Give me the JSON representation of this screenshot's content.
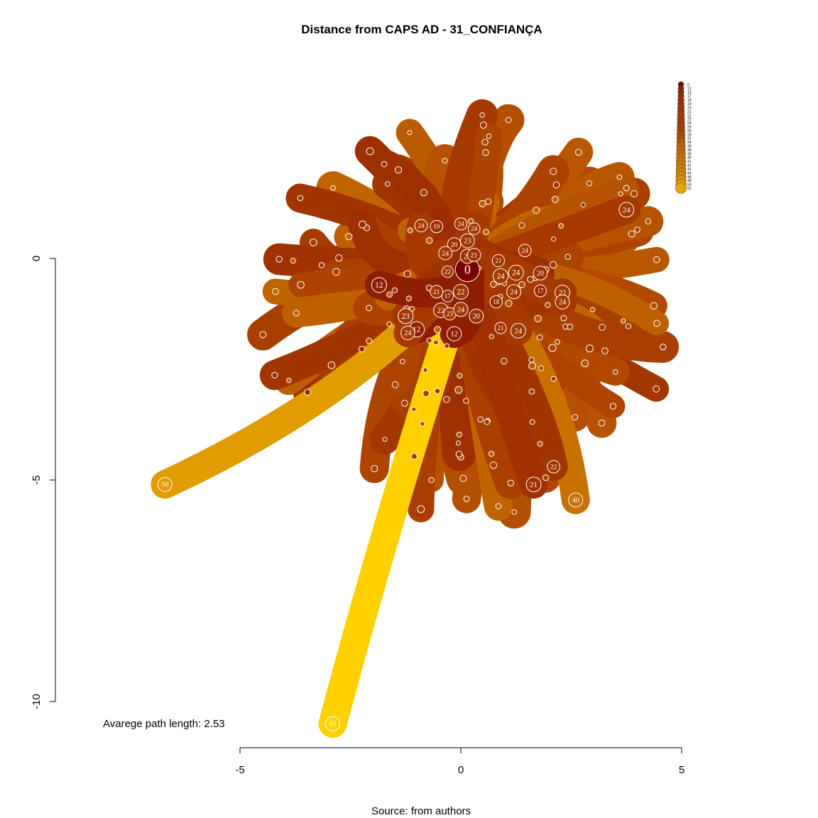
{
  "chart_data": {
    "type": "network",
    "title": "Distance from CAPS AD - 31_CONFIANÇA",
    "source": "Source: from authors",
    "note": "Avarege path length: 2.53",
    "xlim": [
      -5,
      5
    ],
    "ylim": [
      -10,
      0
    ],
    "x_ticks": [
      "-5",
      "0",
      "5"
    ],
    "y_ticks": [
      "0",
      "-5",
      "-10"
    ],
    "legend": [
      "0",
      "12",
      "13",
      "17",
      "18",
      "19",
      "20",
      "21",
      "22",
      "23",
      "24",
      "25",
      "26",
      "28",
      "31",
      "34",
      "36",
      "38",
      "39",
      "40",
      "41",
      "42",
      "43",
      "44",
      "46",
      "48",
      "50",
      "52"
    ],
    "color_low": "#7a0000",
    "color_mid": "#b14a00",
    "color_high": "#ffd000",
    "labeled_nodes": [
      {
        "label": "0",
        "x": 0.15,
        "y": -0.25,
        "v": 0
      },
      {
        "label": "24",
        "x": 3.75,
        "y": 1.1,
        "v": 24
      },
      {
        "label": "50",
        "x": -6.7,
        "y": -5.1,
        "v": 50
      },
      {
        "label": "62",
        "x": -2.9,
        "y": -10.5,
        "v": 62
      },
      {
        "label": "40",
        "x": 2.6,
        "y": -5.45,
        "v": 40
      },
      {
        "label": "22",
        "x": 2.1,
        "y": -4.7,
        "v": 22
      },
      {
        "label": "21",
        "x": 1.65,
        "y": -5.1,
        "v": 21
      },
      {
        "label": "24",
        "x": 0.0,
        "y": 0.78,
        "v": 24
      },
      {
        "label": "24",
        "x": 0.3,
        "y": 0.67,
        "v": 24
      },
      {
        "label": "19",
        "x": -0.55,
        "y": 0.72,
        "v": 19
      },
      {
        "label": "24",
        "x": -0.9,
        "y": 0.74,
        "v": 24
      },
      {
        "label": "20",
        "x": -0.15,
        "y": 0.32,
        "v": 20
      },
      {
        "label": "23",
        "x": 0.15,
        "y": 0.4,
        "v": 23
      },
      {
        "label": "24",
        "x": -0.35,
        "y": 0.12,
        "v": 24
      },
      {
        "label": "20",
        "x": 0.15,
        "y": 0.05,
        "v": 20
      },
      {
        "label": "21",
        "x": 0.3,
        "y": 0.08,
        "v": 21
      },
      {
        "label": "21",
        "x": 0.85,
        "y": -0.05,
        "v": 21
      },
      {
        "label": "24",
        "x": 1.45,
        "y": 0.18,
        "v": 24
      },
      {
        "label": "22",
        "x": -0.3,
        "y": -0.3,
        "v": 22
      },
      {
        "label": "24",
        "x": 0.9,
        "y": -0.4,
        "v": 24
      },
      {
        "label": "20",
        "x": 1.8,
        "y": -0.33,
        "v": 20
      },
      {
        "label": "24",
        "x": 1.25,
        "y": -0.32,
        "v": 24
      },
      {
        "label": "22",
        "x": 0.0,
        "y": -0.75,
        "v": 22
      },
      {
        "label": "17",
        "x": -0.3,
        "y": -0.85,
        "v": 17
      },
      {
        "label": "21",
        "x": -0.55,
        "y": -0.75,
        "v": 21
      },
      {
        "label": "24",
        "x": 1.2,
        "y": -0.75,
        "v": 24
      },
      {
        "label": "17",
        "x": 1.8,
        "y": -0.73,
        "v": 17
      },
      {
        "label": "22",
        "x": 2.3,
        "y": -0.77,
        "v": 22
      },
      {
        "label": "24",
        "x": 2.3,
        "y": -0.98,
        "v": 24
      },
      {
        "label": "18",
        "x": 0.8,
        "y": -0.98,
        "v": 18
      },
      {
        "label": "22",
        "x": -0.45,
        "y": -1.17,
        "v": 22
      },
      {
        "label": "23",
        "x": -0.25,
        "y": -1.25,
        "v": 23
      },
      {
        "label": "24",
        "x": 0.0,
        "y": -1.15,
        "v": 24
      },
      {
        "label": "20",
        "x": 0.35,
        "y": -1.3,
        "v": 20
      },
      {
        "label": "23",
        "x": -1.25,
        "y": -1.3,
        "v": 23
      },
      {
        "label": "21",
        "x": 0.9,
        "y": -1.57,
        "v": 21
      },
      {
        "label": "24",
        "x": 1.3,
        "y": -1.63,
        "v": 24
      },
      {
        "label": "12",
        "x": -1.0,
        "y": -1.6,
        "v": 12
      },
      {
        "label": "24",
        "x": -1.2,
        "y": -1.68,
        "v": 24
      },
      {
        "label": "12",
        "x": -0.15,
        "y": -1.7,
        "v": 12
      },
      {
        "label": "12",
        "x": -1.85,
        "y": -0.6,
        "v": 12
      }
    ]
  }
}
